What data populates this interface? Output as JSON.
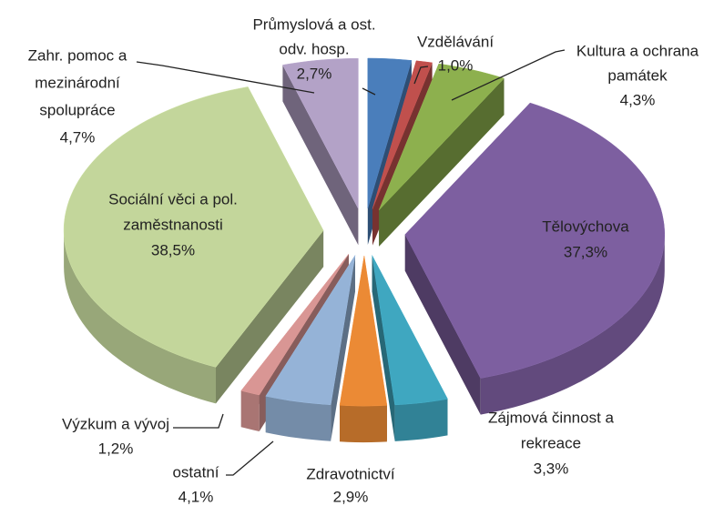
{
  "chart_data": {
    "type": "pie3d",
    "categories": [
      [
        "Průmyslová a ost.",
        "odv. hosp."
      ],
      [
        "Vzdělávání"
      ],
      [
        "Kultura a ochrana",
        "památek"
      ],
      [
        "Tělovýchova"
      ],
      [
        "Zájmová činnost a",
        "rekreace"
      ],
      [
        "Zdravotnictví"
      ],
      [
        "ostatní"
      ],
      [
        "Výzkum a vývoj"
      ],
      [
        "Sociální věci a pol.",
        "zaměstnanosti"
      ],
      [
        "Zahr. pomoc a",
        "mezinárodní",
        "spolupráce"
      ]
    ],
    "values": [
      2.7,
      1.0,
      4.3,
      37.3,
      3.3,
      2.9,
      4.1,
      1.2,
      38.5,
      4.7
    ],
    "value_labels": [
      "2,7%",
      "1,0%",
      "4,3%",
      "37,3%",
      "3,3%",
      "2,9%",
      "4,1%",
      "1,2%",
      "38,5%",
      "4,7%"
    ],
    "colors": [
      "#4a7ebb",
      "#c0504d",
      "#8db04e",
      "#7d5fa0",
      "#3fa7c0",
      "#eb8a35",
      "#95b3d7",
      "#d99694",
      "#c3d69b",
      "#b3a2c7"
    ]
  }
}
